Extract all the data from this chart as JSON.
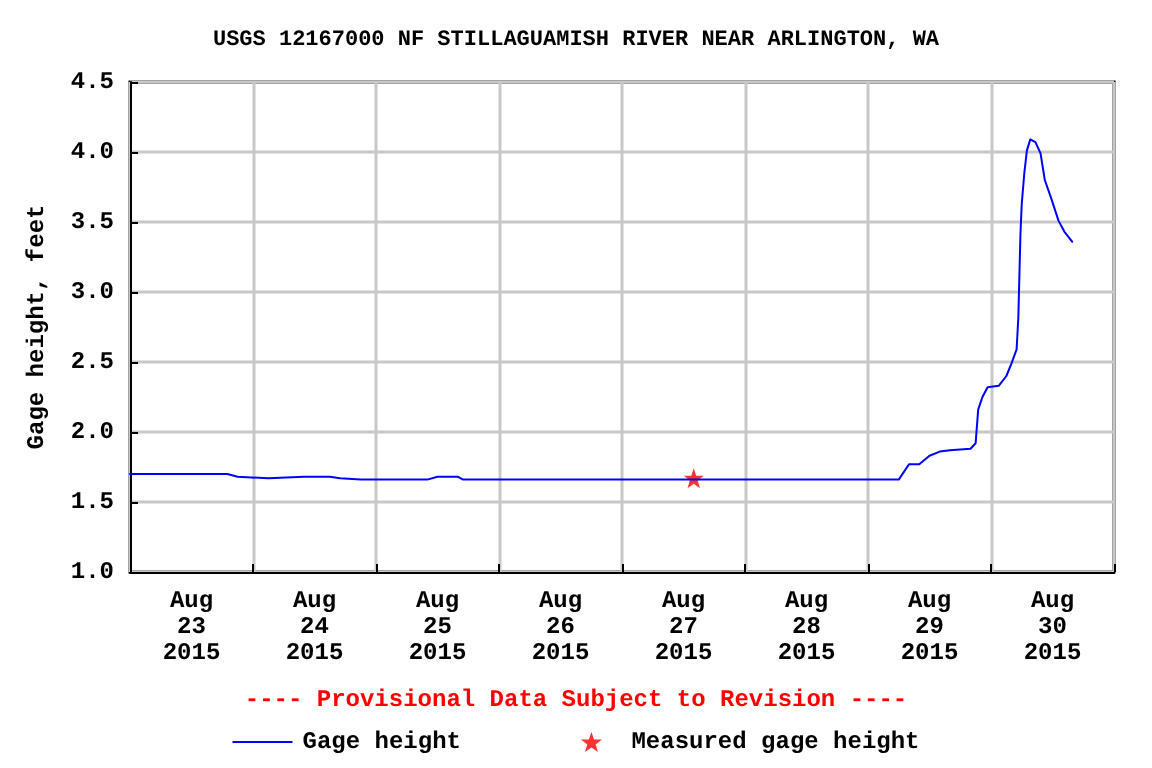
{
  "chart_data": {
    "type": "line",
    "title": "USGS 12167000 NF STILLAGUAMISH RIVER NEAR ARLINGTON, WA",
    "ylabel": "Gage height, feet",
    "annotations": [
      "---- Provisional Data Subject to Revision ----"
    ],
    "series": [
      {
        "name": "Gage height",
        "type": "line",
        "color": "#0000ff",
        "marker": "none",
        "x": [
          "2015-08-23T00:00",
          "2015-08-23T19:00",
          "2015-08-23T21:00",
          "2015-08-24T03:00",
          "2015-08-24T10:00",
          "2015-08-24T15:00",
          "2015-08-24T17:00",
          "2015-08-24T21:00",
          "2015-08-25T10:00",
          "2015-08-25T12:00",
          "2015-08-25T16:00",
          "2015-08-25T17:00",
          "2015-08-26T12:00",
          "2015-08-27T12:00",
          "2015-08-28T12:00",
          "2015-08-29T06:00",
          "2015-08-29T08:00",
          "2015-08-29T10:00",
          "2015-08-29T12:00",
          "2015-08-29T14:00",
          "2015-08-29T16:00",
          "2015-08-29T20:00",
          "2015-08-29T21:00",
          "2015-08-29T21:30",
          "2015-08-29T22:20",
          "2015-08-29T23:20",
          "2015-08-30T01:30",
          "2015-08-30T03:00",
          "2015-08-30T04:00",
          "2015-08-30T05:00",
          "2015-08-30T05:20",
          "2015-08-30T05:45",
          "2015-08-30T06:00",
          "2015-08-30T06:30",
          "2015-08-30T07:00",
          "2015-08-30T07:40",
          "2015-08-30T08:40",
          "2015-08-30T09:40",
          "2015-08-30T10:30",
          "2015-08-30T11:50",
          "2015-08-30T13:10",
          "2015-08-30T14:20",
          "2015-08-30T15:50"
        ],
        "values": [
          1.7,
          1.7,
          1.68,
          1.67,
          1.68,
          1.68,
          1.67,
          1.66,
          1.66,
          1.68,
          1.68,
          1.66,
          1.66,
          1.66,
          1.66,
          1.66,
          1.77,
          1.77,
          1.83,
          1.86,
          1.87,
          1.88,
          1.92,
          2.16,
          2.25,
          2.32,
          2.33,
          2.4,
          2.49,
          2.59,
          2.82,
          3.42,
          3.63,
          3.85,
          4.01,
          4.09,
          4.07,
          3.99,
          3.8,
          3.66,
          3.51,
          3.43,
          3.36
        ]
      },
      {
        "name": "Measured gage height",
        "type": "scatter",
        "color": "#ff0000",
        "marker": "star",
        "x": [
          "2015-08-27T14:00"
        ],
        "values": [
          1.67
        ]
      }
    ],
    "xlim": [
      "2015-08-23T00:00",
      "2015-08-31T00:00"
    ],
    "xticks": [
      {
        "value": "2015-08-23T00:00",
        "label": null
      },
      {
        "value": "2015-08-23T12:00",
        "label": "Aug\n23\n2015"
      },
      {
        "value": "2015-08-24T00:00",
        "label": null
      },
      {
        "value": "2015-08-24T12:00",
        "label": "Aug\n24\n2015"
      },
      {
        "value": "2015-08-25T00:00",
        "label": null
      },
      {
        "value": "2015-08-25T12:00",
        "label": "Aug\n25\n2015"
      },
      {
        "value": "2015-08-26T00:00",
        "label": null
      },
      {
        "value": "2015-08-26T12:00",
        "label": "Aug\n26\n2015"
      },
      {
        "value": "2015-08-27T00:00",
        "label": null
      },
      {
        "value": "2015-08-27T12:00",
        "label": "Aug\n27\n2015"
      },
      {
        "value": "2015-08-28T00:00",
        "label": null
      },
      {
        "value": "2015-08-28T12:00",
        "label": "Aug\n28\n2015"
      },
      {
        "value": "2015-08-29T00:00",
        "label": null
      },
      {
        "value": "2015-08-29T12:00",
        "label": "Aug\n29\n2015"
      },
      {
        "value": "2015-08-30T00:00",
        "label": null
      },
      {
        "value": "2015-08-30T12:00",
        "label": "Aug\n30\n2015"
      },
      {
        "value": "2015-08-31T00:00",
        "label": null
      }
    ],
    "ylim": [
      1.0,
      4.5
    ],
    "yticks": [
      {
        "value": 1.0,
        "label": "1.0"
      },
      {
        "value": 1.5,
        "label": "1.5"
      },
      {
        "value": 2.0,
        "label": "2.0"
      },
      {
        "value": 2.5,
        "label": "2.5"
      },
      {
        "value": 3.0,
        "label": "3.0"
      },
      {
        "value": 3.5,
        "label": "3.5"
      },
      {
        "value": 4.0,
        "label": "4.0"
      },
      {
        "value": 4.5,
        "label": "4.5"
      }
    ],
    "grid": true,
    "legend": "bottom",
    "line_style": "solid"
  }
}
